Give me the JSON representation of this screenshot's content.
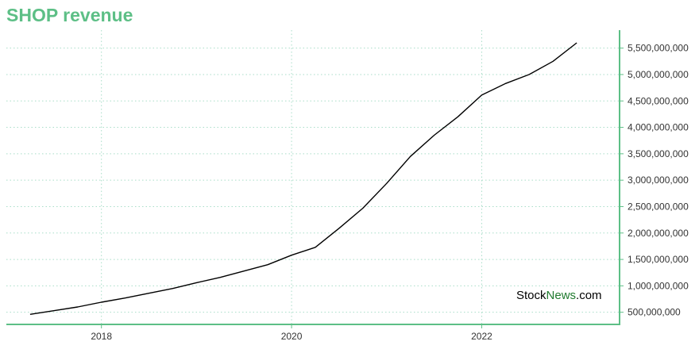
{
  "header": {
    "title": "SHOP revenue"
  },
  "watermark": {
    "part1": "Stock",
    "part2": "News",
    "part3": ".com"
  },
  "colors": {
    "title": "#5dbf86",
    "axis": "#5dbf86",
    "grid": "#a8ddc8",
    "line": "#000000",
    "watermark_accent": "#1f7a2e"
  },
  "chart_data": {
    "type": "line",
    "title": "SHOP revenue",
    "xlabel": "",
    "ylabel": "",
    "grid": true,
    "y_axis_side": "right",
    "xlim": [
      2017.0,
      2023.45
    ],
    "ylim": [
      270000000,
      5840000000
    ],
    "x_ticks": [
      2018,
      2020,
      2022
    ],
    "x_tick_labels": [
      "2018",
      "2020",
      "2022"
    ],
    "y_ticks": [
      500000000,
      1000000000,
      1500000000,
      2000000000,
      2500000000,
      3000000000,
      3500000000,
      4000000000,
      4500000000,
      5000000000,
      5500000000
    ],
    "y_tick_labels": [
      "500,000,000",
      "1,000,000,000",
      "1,500,000,000",
      "2,000,000,000",
      "2,500,000,000",
      "3,000,000,000",
      "3,500,000,000",
      "4,000,000,000",
      "4,500,000,000",
      "5,000,000,000",
      "5,500,000,000"
    ],
    "series": [
      {
        "x": [
          2017.25,
          2017.5,
          2017.75,
          2018.0,
          2018.25,
          2018.5,
          2018.75,
          2019.0,
          2019.25,
          2019.5,
          2019.75,
          2020.0,
          2020.25,
          2020.5,
          2020.75,
          2021.0,
          2021.25,
          2021.5,
          2021.75,
          2022.0,
          2022.25,
          2022.5,
          2022.75,
          2023.0
        ],
        "y": [
          460000000,
          530000000,
          600000000,
          690000000,
          770000000,
          860000000,
          950000000,
          1060000000,
          1160000000,
          1280000000,
          1400000000,
          1580000000,
          1730000000,
          2090000000,
          2470000000,
          2940000000,
          3450000000,
          3850000000,
          4200000000,
          4610000000,
          4830000000,
          5000000000,
          5250000000,
          5600000000
        ]
      }
    ]
  }
}
